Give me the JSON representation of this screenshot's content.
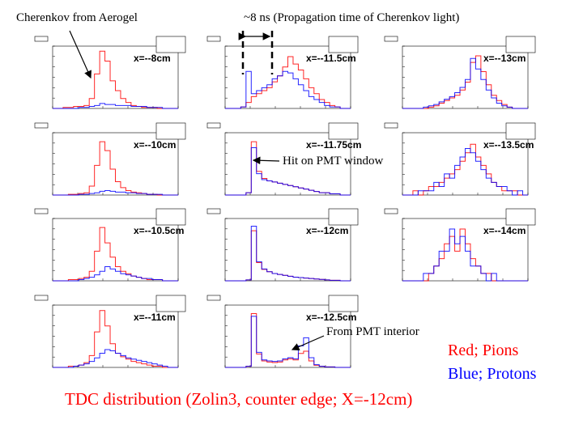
{
  "annotations": {
    "aerogel": "Cherenkov from Aerogel",
    "propagation": "~8 ns (Propagation time of Cherenkov light)",
    "pmt_window": "Hit on PMT window",
    "pmt_interior": "From PMT interior"
  },
  "legend": {
    "red": "Red; Pions",
    "blue": "Blue; Protons"
  },
  "slide_title": "TDC distribution (Zolin3, counter edge; X=-12cm)",
  "colors": {
    "pions": "#ff0000",
    "protons": "#0000ff"
  },
  "chart_data": [
    {
      "type": "bar",
      "label": "x=--8cm",
      "ylim": [
        0,
        60
      ],
      "series": [
        {
          "name": "Red; Pions",
          "values": [
            0,
            0,
            1,
            1,
            2,
            2,
            3,
            10,
            35,
            58,
            48,
            28,
            18,
            10,
            6,
            3,
            2,
            1,
            1,
            1,
            0,
            0,
            0,
            0
          ]
        },
        {
          "name": "Blue; Protons",
          "values": [
            0,
            0,
            0,
            0,
            0,
            1,
            1,
            2,
            3,
            5,
            4,
            4,
            3,
            3,
            3,
            2,
            2,
            2,
            1,
            1,
            1,
            0,
            0,
            0
          ]
        }
      ]
    },
    {
      "type": "bar",
      "label": "x=--11.5cm",
      "ylim": [
        0,
        40
      ],
      "series": [
        {
          "name": "Red; Pions",
          "values": [
            0,
            0,
            0,
            1,
            4,
            8,
            10,
            12,
            14,
            18,
            22,
            28,
            35,
            30,
            26,
            20,
            14,
            10,
            6,
            4,
            2,
            1,
            0,
            0
          ]
        },
        {
          "name": "Blue; Protons",
          "values": [
            0,
            0,
            0,
            1,
            25,
            10,
            12,
            14,
            16,
            20,
            22,
            25,
            24,
            20,
            16,
            12,
            8,
            6,
            4,
            2,
            1,
            1,
            0,
            0
          ]
        }
      ]
    },
    {
      "type": "bar",
      "label": "x=--13cm",
      "ylim": [
        0,
        45
      ],
      "series": [
        {
          "name": "Red; Pions",
          "values": [
            0,
            0,
            0,
            0,
            0,
            1,
            2,
            4,
            6,
            8,
            10,
            14,
            20,
            35,
            40,
            28,
            18,
            10,
            6,
            3,
            1,
            0,
            0,
            0
          ]
        },
        {
          "name": "Blue; Protons",
          "values": [
            0,
            0,
            0,
            0,
            1,
            2,
            3,
            5,
            7,
            9,
            12,
            16,
            22,
            38,
            30,
            22,
            14,
            8,
            4,
            2,
            1,
            0,
            0,
            0
          ]
        }
      ]
    },
    {
      "type": "bar",
      "label": "x=--10cm",
      "ylim": [
        0,
        80
      ],
      "series": [
        {
          "name": "Red; Pions",
          "values": [
            0,
            0,
            0,
            1,
            1,
            2,
            3,
            12,
            40,
            72,
            60,
            35,
            18,
            10,
            6,
            4,
            3,
            2,
            1,
            1,
            0,
            0,
            0,
            0
          ]
        },
        {
          "name": "Blue; Protons",
          "values": [
            0,
            0,
            0,
            0,
            0,
            1,
            1,
            2,
            3,
            5,
            6,
            5,
            4,
            4,
            3,
            3,
            2,
            2,
            1,
            1,
            1,
            0,
            0,
            0
          ]
        }
      ]
    },
    {
      "type": "bar",
      "label": "x=--11.75cm",
      "ylim": [
        0,
        50
      ],
      "series": [
        {
          "name": "Red; Pions",
          "values": [
            0,
            0,
            0,
            0,
            2,
            45,
            20,
            14,
            12,
            11,
            10,
            9,
            8,
            7,
            6,
            5,
            4,
            3,
            2,
            2,
            1,
            1,
            0,
            0
          ]
        },
        {
          "name": "Blue; Protons",
          "values": [
            0,
            0,
            0,
            0,
            2,
            40,
            18,
            13,
            12,
            11,
            10,
            9,
            8,
            7,
            6,
            5,
            4,
            3,
            2,
            2,
            1,
            1,
            0,
            0
          ]
        }
      ]
    },
    {
      "type": "bar",
      "label": "x=--13.5cm",
      "ylim": [
        0,
        14
      ],
      "series": [
        {
          "name": "Red; Pions",
          "values": [
            0,
            0,
            1,
            0,
            1,
            2,
            2,
            3,
            4,
            5,
            6,
            8,
            10,
            12,
            9,
            7,
            5,
            3,
            2,
            1,
            1,
            1,
            0,
            0
          ]
        },
        {
          "name": "Blue; Protons",
          "values": [
            0,
            0,
            0,
            1,
            1,
            1,
            3,
            2,
            5,
            4,
            7,
            9,
            11,
            10,
            8,
            6,
            4,
            3,
            2,
            2,
            1,
            0,
            1,
            0
          ]
        }
      ]
    },
    {
      "type": "bar",
      "label": "x=--10.5cm",
      "ylim": [
        0,
        50
      ],
      "series": [
        {
          "name": "Red; Pions",
          "values": [
            0,
            0,
            0,
            1,
            1,
            2,
            3,
            8,
            25,
            45,
            32,
            20,
            12,
            8,
            6,
            4,
            3,
            2,
            1,
            1,
            1,
            0,
            0,
            0
          ]
        },
        {
          "name": "Blue; Protons",
          "values": [
            0,
            0,
            0,
            0,
            0,
            1,
            2,
            3,
            5,
            8,
            12,
            10,
            8,
            6,
            5,
            4,
            3,
            2,
            2,
            1,
            1,
            0,
            0,
            0
          ]
        }
      ]
    },
    {
      "type": "bar",
      "label": "x=--12cm",
      "ylim": [
        0,
        130
      ],
      "series": [
        {
          "name": "Red; Pions",
          "values": [
            0,
            0,
            0,
            0,
            2,
            110,
            40,
            25,
            20,
            16,
            14,
            12,
            10,
            8,
            7,
            6,
            5,
            4,
            3,
            2,
            1,
            1,
            0,
            0
          ]
        },
        {
          "name": "Blue; Protons",
          "values": [
            0,
            0,
            0,
            0,
            2,
            120,
            42,
            26,
            20,
            16,
            14,
            12,
            10,
            8,
            7,
            6,
            5,
            4,
            3,
            2,
            1,
            1,
            0,
            0
          ]
        }
      ]
    },
    {
      "type": "bar",
      "label": "x=--14cm",
      "ylim": [
        0,
        8
      ],
      "series": [
        {
          "name": "Red; Pions",
          "values": [
            0,
            0,
            0,
            0,
            0,
            1,
            2,
            3,
            5,
            6,
            4,
            7,
            5,
            3,
            2,
            1,
            1,
            0,
            0,
            0,
            0,
            0,
            0,
            0
          ]
        },
        {
          "name": "Blue; Protons",
          "values": [
            0,
            0,
            0,
            0,
            1,
            1,
            2,
            4,
            4,
            7,
            5,
            6,
            4,
            2,
            2,
            1,
            0,
            1,
            0,
            0,
            0,
            0,
            0,
            0
          ]
        }
      ]
    },
    {
      "type": "bar",
      "label": "x=--11cm",
      "ylim": [
        0,
        50
      ],
      "series": [
        {
          "name": "Red; Pions",
          "values": [
            0,
            0,
            0,
            1,
            1,
            2,
            4,
            10,
            30,
            48,
            35,
            20,
            12,
            9,
            7,
            5,
            4,
            3,
            2,
            1,
            1,
            0,
            0,
            0
          ]
        },
        {
          "name": "Blue; Protons",
          "values": [
            0,
            0,
            0,
            0,
            1,
            2,
            3,
            5,
            8,
            12,
            15,
            14,
            12,
            10,
            8,
            7,
            6,
            5,
            4,
            3,
            2,
            1,
            0,
            0
          ]
        }
      ]
    },
    {
      "type": "bar",
      "label": "x=--12.5cm",
      "ylim": [
        0,
        110
      ],
      "series": [
        {
          "name": "Red; Pions",
          "values": [
            0,
            0,
            0,
            0,
            2,
            100,
            25,
            12,
            10,
            9,
            10,
            14,
            16,
            14,
            26,
            30,
            12,
            4,
            2,
            1,
            1,
            0,
            0,
            0
          ]
        },
        {
          "name": "Blue; Protons",
          "values": [
            0,
            0,
            0,
            0,
            2,
            95,
            28,
            14,
            12,
            11,
            12,
            16,
            18,
            16,
            40,
            55,
            18,
            5,
            2,
            1,
            1,
            0,
            0,
            0
          ]
        }
      ]
    }
  ]
}
